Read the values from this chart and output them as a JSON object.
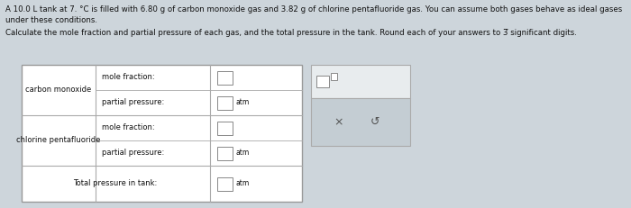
{
  "title_line1": "A 10.0 L tank at 7. °C is filled with 6.80 g of carbon monoxide gas and 3.82 g of chlorine pentafluoride gas. You can assume both gases behave as ideal gases",
  "title_line2": "under these conditions.",
  "subtitle": "Calculate the mole fraction and partial pressure of each gas, and the total pressure in the tank. Round each of your answers to 3̅ significant digits.",
  "row1_label": "carbon monoxide",
  "row2_label": "chlorine pentafluoride",
  "row1_field1_label": "mole fraction:",
  "row1_field2_label": "partial pressure:",
  "row2_field1_label": "mole fraction:",
  "row2_field2_label": "partial pressure:",
  "total_label": "Total pressure in tank:",
  "atm": "atm",
  "bg_color": "#cdd5db",
  "table_bg": "#ffffff",
  "table_border": "#aaaaaa",
  "input_box_border": "#888888",
  "text_color": "#111111",
  "font_size_title": 6.2,
  "font_size_table": 6.0,
  "popup_top_bg": "#e8ecee",
  "popup_bottom_bg": "#c4cdd3",
  "popup_border": "#aaaaaa"
}
